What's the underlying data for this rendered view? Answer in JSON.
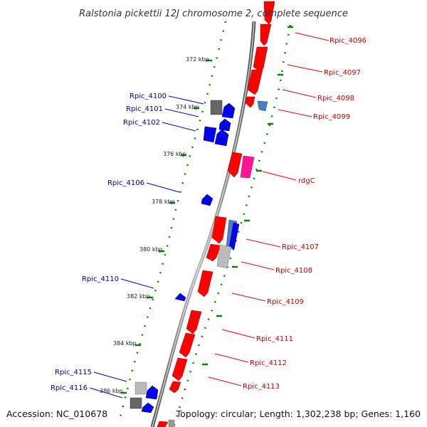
{
  "title": "Ralstonia pickettii 12J chromosome 2, complete sequence",
  "accession": "Accession: NC_010678",
  "summary": "Topology: circular; Length: 1,302,238 bp; Genes: 1,160",
  "ticks": [
    "372 kbp",
    "374 kbp",
    "376 kbp",
    "378 kbp",
    "380 kbp",
    "382 kbp",
    "384 kbp",
    "386 kbp"
  ],
  "genes_forward": [
    "Rpic_4096",
    "Rpic_4097",
    "Rpic_4098",
    "Rpic_4099",
    "rdgC",
    "Rpic_4107",
    "Rpic_4108",
    "Rpic_4109",
    "Rpic_4111",
    "Rpic_4112",
    "Rpic_4113"
  ],
  "genes_reverse": [
    "Rpic_4100",
    "Rpic_4101",
    "Rpic_4102",
    "Rpic_4106",
    "Rpic_4110",
    "Rpic_4115",
    "Rpic_4116"
  ],
  "colors": {
    "forward": "#ff0000",
    "reverse": "#0000ee",
    "backbone": "#777777",
    "tick_dots": "#008800",
    "label_forward": "#cc0000",
    "label_reverse": "#0000aa"
  }
}
